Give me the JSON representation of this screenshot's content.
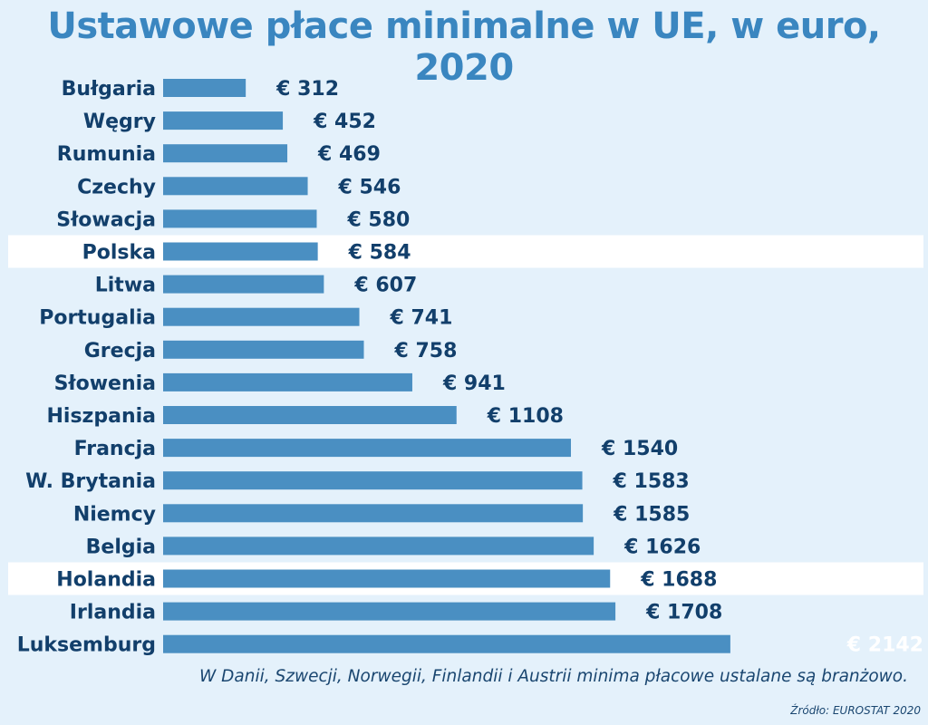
{
  "title": "Ustawowe płace minimalne w UE, w euro, 2020",
  "note": "W Danii, Szwecji, Norwegii, Finlandii i Austrii minima płacowe ustalane są branżowo.",
  "source": "Źródło: EUROSTAT 2020",
  "colors": {
    "bar": "#4a8fc2",
    "label": "#123f6b",
    "highlight": "#ffffff",
    "title": "#3a86c0",
    "background": "#e4f1fb"
  },
  "chart_data": {
    "type": "bar",
    "orientation": "horizontal",
    "value_prefix": "€ ",
    "categories": [
      "Bułgaria",
      "Węgry",
      "Rumunia",
      "Czechy",
      "Słowacja",
      "Polska",
      "Litwa",
      "Portugalia",
      "Grecja",
      "Słowenia",
      "Hiszpania",
      "Francja",
      "W. Brytania",
      "Niemcy",
      "Belgia",
      "Holandia",
      "Irlandia",
      "Luksemburg"
    ],
    "values": [
      312,
      452,
      469,
      546,
      580,
      584,
      607,
      741,
      758,
      941,
      1108,
      1540,
      1583,
      1585,
      1626,
      1688,
      1708,
      2142
    ],
    "highlighted": [
      "Polska",
      "Holandia"
    ],
    "title": "Ustawowe płace minimalne w UE, w euro, 2020",
    "xlabel": "",
    "ylabel": "",
    "grid": false,
    "legend": "none"
  }
}
